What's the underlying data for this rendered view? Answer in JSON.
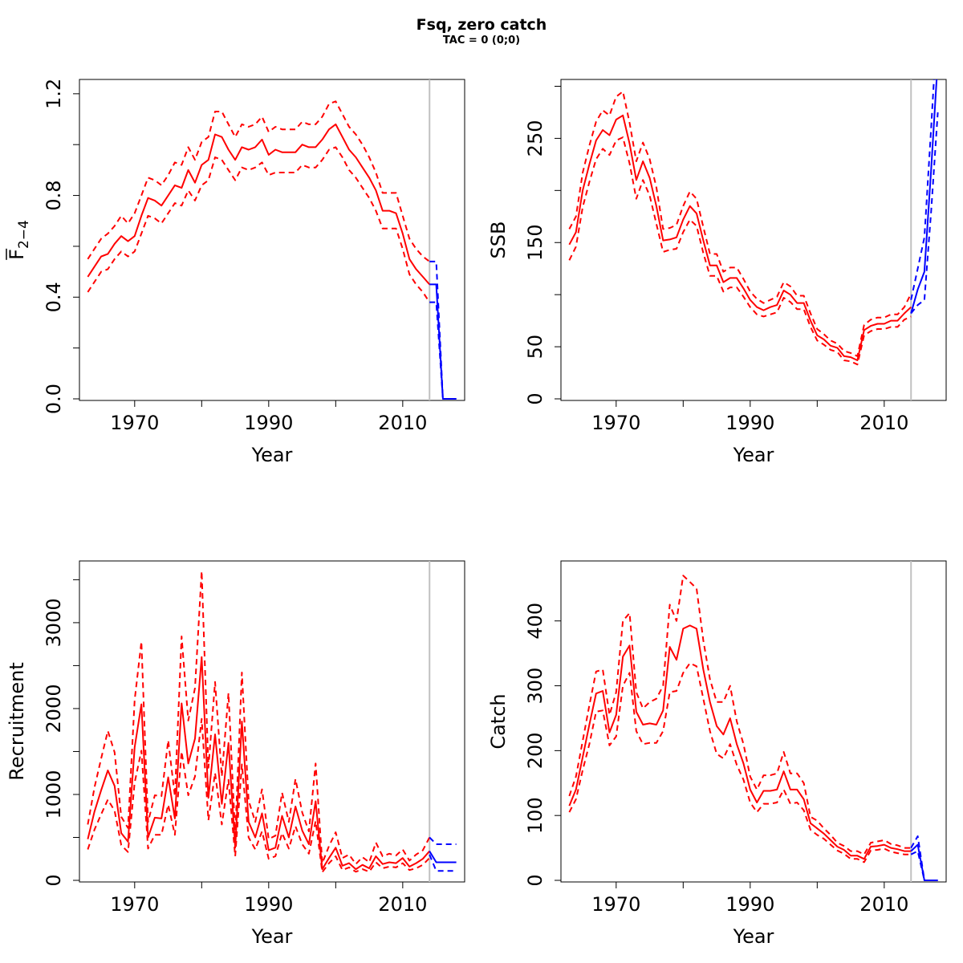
{
  "title": "Fsq, zero catch",
  "subtitle": "TAC = 0 (0;0)",
  "colors": {
    "historic": "#ff0000",
    "projection": "#0000ff",
    "vline": "#c0c0c0"
  },
  "chart_data": [
    {
      "id": "fbar",
      "type": "line",
      "xlabel": "Year",
      "ylabel": "F",
      "ylabel_sub": "2−4",
      "xlim": [
        1962,
        2019
      ],
      "ylim": [
        0,
        1.25
      ],
      "xticks": [
        1970,
        1990,
        2010
      ],
      "xminor": [
        1980,
        2000,
        2020
      ],
      "yticks": [
        "0.0",
        "0.4",
        "0.8",
        "1.2"
      ],
      "ytick_values": [
        0,
        0.4,
        0.8,
        1.2
      ],
      "yminor": [
        0.2,
        0.6,
        1.0
      ],
      "vline": 2014,
      "historic": {
        "x": [
          1963,
          1964,
          1965,
          1966,
          1967,
          1968,
          1969,
          1970,
          1971,
          1972,
          1973,
          1974,
          1975,
          1976,
          1977,
          1978,
          1979,
          1980,
          1981,
          1982,
          1983,
          1984,
          1985,
          1986,
          1987,
          1988,
          1989,
          1990,
          1991,
          1992,
          1993,
          1994,
          1995,
          1996,
          1997,
          1998,
          1999,
          2000,
          2001,
          2002,
          2003,
          2004,
          2005,
          2006,
          2007,
          2008,
          2009,
          2010,
          2011,
          2012,
          2013,
          2014
        ],
        "mid": [
          0.48,
          0.52,
          0.56,
          0.57,
          0.61,
          0.64,
          0.62,
          0.64,
          0.72,
          0.79,
          0.78,
          0.76,
          0.8,
          0.84,
          0.83,
          0.9,
          0.85,
          0.92,
          0.94,
          1.04,
          1.03,
          0.98,
          0.94,
          0.99,
          0.98,
          0.99,
          1.02,
          0.96,
          0.98,
          0.97,
          0.97,
          0.97,
          1.0,
          0.99,
          0.99,
          1.02,
          1.06,
          1.08,
          1.03,
          0.98,
          0.95,
          0.91,
          0.87,
          0.82,
          0.74,
          0.74,
          0.73,
          0.65,
          0.55,
          0.51,
          0.48,
          0.45
        ],
        "upper": [
          0.55,
          0.59,
          0.63,
          0.65,
          0.68,
          0.72,
          0.69,
          0.73,
          0.8,
          0.87,
          0.86,
          0.84,
          0.88,
          0.93,
          0.92,
          0.99,
          0.94,
          1.01,
          1.03,
          1.13,
          1.13,
          1.08,
          1.03,
          1.08,
          1.07,
          1.08,
          1.11,
          1.05,
          1.07,
          1.06,
          1.06,
          1.06,
          1.09,
          1.08,
          1.08,
          1.11,
          1.16,
          1.17,
          1.12,
          1.07,
          1.04,
          1.0,
          0.95,
          0.89,
          0.81,
          0.81,
          0.81,
          0.72,
          0.63,
          0.59,
          0.56,
          0.54
        ],
        "lower": [
          0.42,
          0.46,
          0.5,
          0.51,
          0.55,
          0.58,
          0.56,
          0.58,
          0.65,
          0.72,
          0.71,
          0.69,
          0.73,
          0.77,
          0.76,
          0.82,
          0.78,
          0.84,
          0.86,
          0.95,
          0.94,
          0.9,
          0.86,
          0.91,
          0.9,
          0.91,
          0.93,
          0.88,
          0.89,
          0.89,
          0.89,
          0.89,
          0.92,
          0.91,
          0.91,
          0.94,
          0.98,
          0.99,
          0.95,
          0.9,
          0.87,
          0.83,
          0.79,
          0.74,
          0.67,
          0.67,
          0.67,
          0.59,
          0.49,
          0.45,
          0.42,
          0.38
        ]
      },
      "projection": {
        "x": [
          2014,
          2015,
          2016,
          2017,
          2018
        ],
        "mid": [
          0.45,
          0.45,
          0,
          0,
          0
        ],
        "upper": [
          0.54,
          0.54,
          0,
          0,
          0
        ],
        "lower": [
          0.38,
          0.38,
          0,
          0,
          0
        ]
      }
    },
    {
      "id": "ssb",
      "type": "line",
      "xlabel": "Year",
      "ylabel": "SSB",
      "xlim": [
        1962,
        2019
      ],
      "ylim": [
        0,
        305
      ],
      "xticks": [
        1970,
        1990,
        2010
      ],
      "xminor": [
        1980,
        2000,
        2020
      ],
      "yticks": [
        "0",
        "50",
        "150",
        "250"
      ],
      "ytick_values": [
        0,
        50,
        150,
        250
      ],
      "yminor": [
        100,
        200,
        300
      ],
      "vline": 2014,
      "historic": {
        "x": [
          1963,
          1964,
          1965,
          1966,
          1967,
          1968,
          1969,
          1970,
          1971,
          1972,
          1973,
          1974,
          1975,
          1976,
          1977,
          1978,
          1979,
          1980,
          1981,
          1982,
          1983,
          1984,
          1985,
          1986,
          1987,
          1988,
          1989,
          1990,
          1991,
          1992,
          1993,
          1994,
          1995,
          1996,
          1997,
          1998,
          1999,
          2000,
          2001,
          2002,
          2003,
          2004,
          2005,
          2006,
          2007,
          2008,
          2009,
          2010,
          2011,
          2012,
          2013,
          2014
        ],
        "mid": [
          148,
          160,
          200,
          225,
          248,
          258,
          253,
          268,
          272,
          245,
          210,
          228,
          212,
          185,
          152,
          153,
          155,
          172,
          185,
          178,
          152,
          128,
          128,
          112,
          116,
          116,
          106,
          95,
          88,
          85,
          88,
          90,
          104,
          100,
          92,
          92,
          75,
          61,
          57,
          51,
          49,
          41,
          40,
          37,
          66,
          70,
          72,
          72,
          75,
          75,
          82,
          88
        ],
        "upper": [
          163,
          175,
          217,
          243,
          266,
          277,
          272,
          290,
          295,
          265,
          228,
          246,
          230,
          203,
          163,
          164,
          167,
          185,
          199,
          192,
          165,
          139,
          139,
          122,
          126,
          126,
          115,
          103,
          96,
          92,
          95,
          98,
          112,
          108,
          99,
          99,
          82,
          67,
          62,
          56,
          53,
          46,
          44,
          41,
          71,
          76,
          78,
          78,
          81,
          81,
          88,
          101
        ],
        "lower": [
          133,
          146,
          184,
          208,
          230,
          240,
          234,
          248,
          251,
          226,
          192,
          210,
          195,
          168,
          141,
          143,
          144,
          160,
          172,
          166,
          140,
          118,
          118,
          103,
          107,
          107,
          98,
          88,
          81,
          79,
          81,
          83,
          97,
          93,
          86,
          86,
          69,
          56,
          52,
          47,
          45,
          37,
          36,
          33,
          61,
          65,
          67,
          67,
          69,
          69,
          76,
          79
        ]
      },
      "projection": {
        "x": [
          2014,
          2015,
          2016,
          2017,
          2018
        ],
        "mid": [
          82,
          105,
          122,
          220,
          325
        ],
        "upper": [
          95,
          125,
          155,
          260,
          370
        ],
        "lower": [
          82,
          90,
          95,
          180,
          275
        ]
      }
    },
    {
      "id": "recruitment",
      "type": "line",
      "xlabel": "Year",
      "ylabel": "Recruitment",
      "xlim": [
        1962,
        2019
      ],
      "ylim": [
        0,
        3700
      ],
      "xticks": [
        1970,
        1990,
        2010
      ],
      "xminor": [
        1980,
        2000,
        2020
      ],
      "yticks": [
        "0",
        "1000",
        "2000",
        "3000"
      ],
      "ytick_values": [
        0,
        1000,
        2000,
        3000
      ],
      "yminor": [
        500,
        1500,
        2500,
        3500
      ],
      "vline": 2014,
      "historic": {
        "x": [
          1963,
          1964,
          1965,
          1966,
          1967,
          1968,
          1969,
          1970,
          1971,
          1972,
          1973,
          1974,
          1975,
          1976,
          1977,
          1978,
          1979,
          1980,
          1981,
          1982,
          1983,
          1984,
          1985,
          1986,
          1987,
          1988,
          1989,
          1990,
          1991,
          1992,
          1993,
          1994,
          1995,
          1996,
          1997,
          1998,
          1999,
          2000,
          2001,
          2002,
          2003,
          2004,
          2005,
          2006,
          2007,
          2008,
          2009,
          2010,
          2011,
          2012,
          2013,
          2014
        ],
        "mid": [
          480,
          800,
          1050,
          1280,
          1100,
          550,
          450,
          1550,
          2050,
          500,
          730,
          720,
          1200,
          720,
          2060,
          1360,
          1650,
          2600,
          960,
          1700,
          890,
          1600,
          380,
          1850,
          680,
          500,
          780,
          350,
          380,
          750,
          500,
          860,
          580,
          420,
          920,
          130,
          260,
          380,
          170,
          200,
          130,
          180,
          140,
          280,
          190,
          210,
          200,
          260,
          160,
          200,
          250,
          340
        ],
        "upper": [
          650,
          1080,
          1420,
          1740,
          1490,
          740,
          610,
          2100,
          2780,
          680,
          990,
          980,
          1630,
          980,
          2840,
          1860,
          2240,
          3600,
          1310,
          2310,
          1210,
          2180,
          520,
          2420,
          930,
          680,
          1060,
          480,
          520,
          1020,
          680,
          1180,
          790,
          570,
          1360,
          200,
          400,
          560,
          260,
          300,
          190,
          270,
          210,
          440,
          280,
          310,
          290,
          360,
          230,
          300,
          350,
          500
        ],
        "lower": [
          360,
          590,
          770,
          940,
          810,
          410,
          330,
          1140,
          1510,
          370,
          530,
          530,
          880,
          530,
          1500,
          990,
          1210,
          1880,
          700,
          1250,
          650,
          1170,
          280,
          1350,
          500,
          360,
          570,
          250,
          280,
          550,
          370,
          630,
          420,
          310,
          690,
          95,
          200,
          280,
          120,
          150,
          100,
          130,
          100,
          210,
          140,
          160,
          150,
          200,
          120,
          140,
          180,
          260
        ]
      },
      "projection": {
        "x": [
          2014,
          2015,
          2016,
          2017,
          2018
        ],
        "mid": [
          340,
          210,
          210,
          210,
          210
        ],
        "upper": [
          500,
          420,
          420,
          420,
          420
        ],
        "lower": [
          300,
          110,
          110,
          110,
          110
        ]
      }
    },
    {
      "id": "catch",
      "type": "line",
      "xlabel": "Year",
      "ylabel": "Catch",
      "xlim": [
        1962,
        2019
      ],
      "ylim": [
        0,
        490
      ],
      "xticks": [
        1970,
        1990,
        2010
      ],
      "xminor": [
        1980,
        2000,
        2020
      ],
      "yticks": [
        "0",
        "100",
        "200",
        "300",
        "400"
      ],
      "ytick_values": [
        0,
        100,
        200,
        300,
        400
      ],
      "yminor": [],
      "vline": 2014,
      "historic": {
        "x": [
          1963,
          1964,
          1965,
          1966,
          1967,
          1968,
          1969,
          1970,
          1971,
          1972,
          1973,
          1974,
          1975,
          1976,
          1977,
          1978,
          1979,
          1980,
          1981,
          1982,
          1983,
          1984,
          1985,
          1986,
          1987,
          1988,
          1989,
          1990,
          1991,
          1992,
          1993,
          1994,
          1995,
          1996,
          1997,
          1998,
          1999,
          2000,
          2001,
          2002,
          2003,
          2004,
          2005,
          2006,
          2007,
          2008,
          2009,
          2010,
          2011,
          2012,
          2013,
          2014
        ],
        "mid": [
          115,
          140,
          190,
          240,
          288,
          292,
          228,
          255,
          345,
          362,
          260,
          240,
          242,
          240,
          262,
          360,
          340,
          388,
          393,
          388,
          325,
          275,
          238,
          225,
          250,
          210,
          180,
          140,
          120,
          138,
          138,
          140,
          168,
          140,
          140,
          125,
          88,
          80,
          72,
          62,
          52,
          47,
          38,
          38,
          33,
          52,
          53,
          55,
          50,
          48,
          45,
          45
        ],
        "upper": [
          130,
          160,
          215,
          270,
          322,
          325,
          255,
          290,
          400,
          412,
          290,
          265,
          275,
          280,
          300,
          425,
          400,
          470,
          460,
          450,
          370,
          310,
          275,
          275,
          300,
          245,
          210,
          160,
          140,
          162,
          162,
          165,
          198,
          165,
          165,
          150,
          98,
          92,
          80,
          70,
          58,
          53,
          45,
          45,
          40,
          58,
          60,
          62,
          56,
          54,
          50,
          50
        ],
        "lower": [
          105,
          125,
          170,
          210,
          260,
          262,
          208,
          222,
          300,
          320,
          230,
          210,
          212,
          212,
          230,
          290,
          292,
          320,
          335,
          330,
          280,
          230,
          195,
          188,
          210,
          178,
          155,
          120,
          105,
          118,
          118,
          120,
          140,
          118,
          120,
          108,
          78,
          70,
          64,
          55,
          46,
          41,
          33,
          33,
          28,
          46,
          47,
          49,
          44,
          42,
          40,
          40
        ]
      },
      "projection": {
        "x": [
          2014,
          2015,
          2016,
          2017,
          2018
        ],
        "mid": [
          45,
          55,
          0,
          0,
          0
        ],
        "upper": [
          50,
          68,
          0,
          0,
          0
        ],
        "lower": [
          40,
          45,
          0,
          0,
          0
        ]
      }
    }
  ]
}
